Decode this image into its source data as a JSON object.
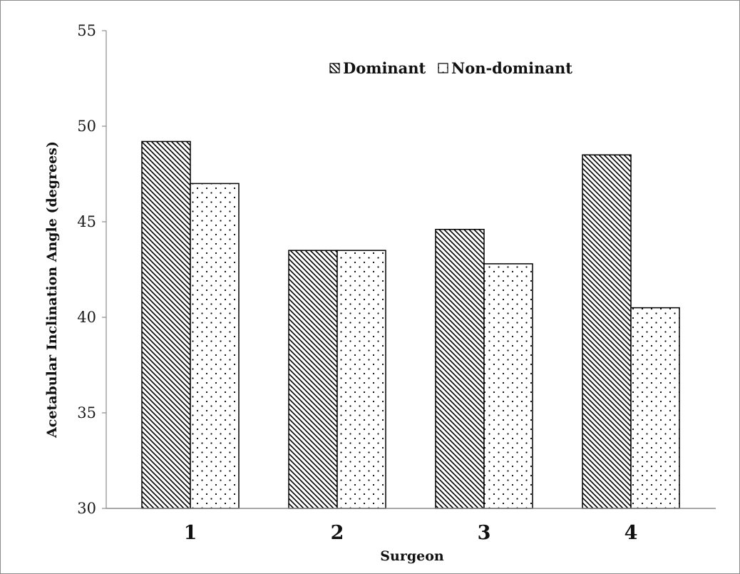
{
  "chart_data": {
    "type": "bar",
    "categories": [
      "1",
      "2",
      "3",
      "4"
    ],
    "series": [
      {
        "name": "Dominant",
        "values": [
          49.2,
          43.5,
          44.6,
          48.5
        ],
        "pattern": "diagonal-hatch"
      },
      {
        "name": "Non-dominant",
        "values": [
          47.0,
          43.5,
          42.8,
          40.5
        ],
        "pattern": "dots"
      }
    ],
    "title": "",
    "xlabel": "Surgeon",
    "ylabel": "Acetabular Inclination Angle (degrees)",
    "ylim": [
      30,
      55
    ],
    "yticks": [
      "30",
      "35",
      "40",
      "45",
      "50",
      "55"
    ],
    "grid": false,
    "legend_position": "top-center",
    "colors": {
      "bar_stroke": "#000000",
      "bar_fill": "#ffffff",
      "axis": "#8c8c8c",
      "text": "#111111"
    }
  }
}
